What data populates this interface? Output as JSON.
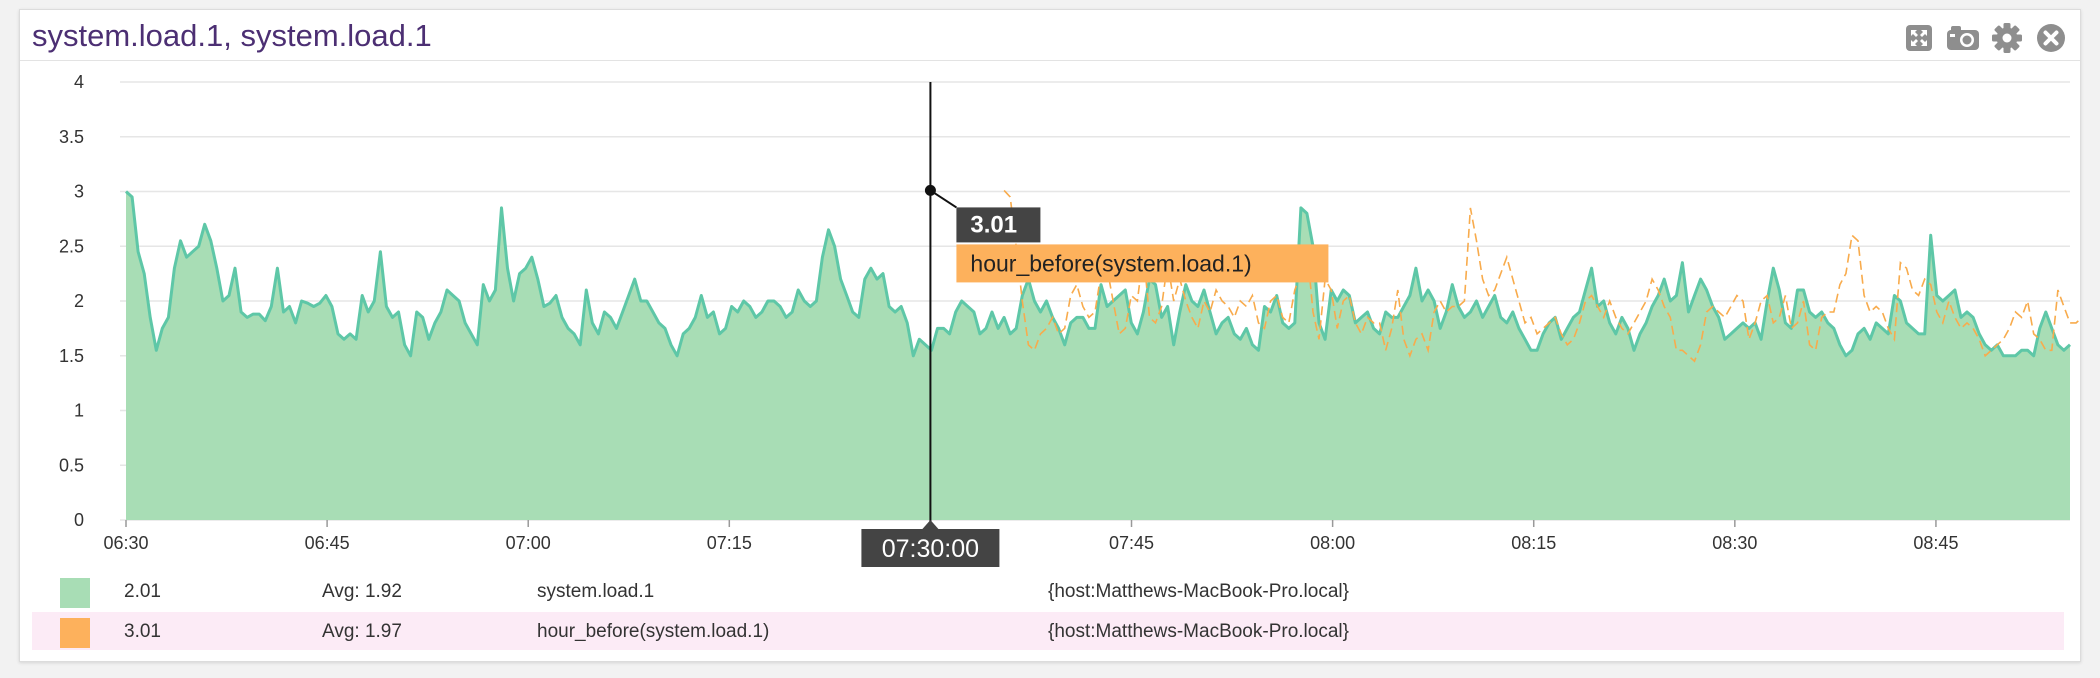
{
  "widget": {
    "title": "system.load.1, system.load.1",
    "toolbar": [
      {
        "name": "expand-icon"
      },
      {
        "name": "camera-icon"
      },
      {
        "name": "gear-icon"
      },
      {
        "name": "close-icon"
      }
    ]
  },
  "colors": {
    "series1_fill": "#a8ddb5",
    "series1_line": "#5ec7a7",
    "series2_line": "#f8ab4c",
    "tooltip_value_bg": "#444444",
    "tooltip_label_bg": "#fdb15c",
    "cursor_badge_bg": "#444444",
    "legend_highlight": "#fcebf6"
  },
  "chart_data": {
    "type": "area",
    "x_axis": {
      "ticks": [
        "06:30",
        "06:45",
        "07:00",
        "07:15",
        "07:45",
        "08:00",
        "08:15",
        "08:30",
        "08:45"
      ],
      "start": "06:30",
      "end": "08:55"
    },
    "y_axis": {
      "ticks": [
        "0",
        "0.5",
        "1",
        "1.5",
        "2",
        "2.5",
        "3",
        "3.5",
        "4"
      ],
      "ylim": [
        0,
        4
      ]
    },
    "grid": true,
    "series": [
      {
        "name": "system.load.1",
        "style": "area",
        "values": [
          3.0,
          2.95,
          2.45,
          2.25,
          1.85,
          1.55,
          1.75,
          1.85,
          2.3,
          2.55,
          2.4,
          2.45,
          2.5,
          2.7,
          2.55,
          2.3,
          2.0,
          2.05,
          2.3,
          1.9,
          1.85,
          1.88,
          1.88,
          1.82,
          1.95,
          2.3,
          1.9,
          1.95,
          1.8,
          2.0,
          1.98,
          1.95,
          1.98,
          2.05,
          1.95,
          1.7,
          1.65,
          1.7,
          1.65,
          2.05,
          1.9,
          2.0,
          2.45,
          1.95,
          1.85,
          1.9,
          1.6,
          1.5,
          1.9,
          1.85,
          1.65,
          1.8,
          1.9,
          2.1,
          2.05,
          2.0,
          1.8,
          1.7,
          1.6,
          2.15,
          2.0,
          2.1,
          2.85,
          2.3,
          2.0,
          2.25,
          2.3,
          2.4,
          2.2,
          1.95,
          1.98,
          2.05,
          1.85,
          1.75,
          1.7,
          1.6,
          2.1,
          1.8,
          1.7,
          1.9,
          1.85,
          1.75,
          1.9,
          2.05,
          2.2,
          2.0,
          2.0,
          1.9,
          1.8,
          1.75,
          1.6,
          1.5,
          1.7,
          1.75,
          1.85,
          2.05,
          1.85,
          1.9,
          1.7,
          1.75,
          1.95,
          1.9,
          2.0,
          1.95,
          1.85,
          1.9,
          2.0,
          2.0,
          1.95,
          1.85,
          1.9,
          2.1,
          2.0,
          1.95,
          2.0,
          2.4,
          2.65,
          2.5,
          2.2,
          2.05,
          1.9,
          1.85,
          2.2,
          2.3,
          2.2,
          2.25,
          1.95,
          1.9,
          1.95,
          1.8,
          1.5,
          1.65,
          1.6,
          1.55,
          1.75,
          1.75,
          1.7,
          1.9,
          2.0,
          1.95,
          1.9,
          1.7,
          1.75,
          1.9,
          1.75,
          1.85,
          1.7,
          1.75,
          2.05,
          2.2,
          2.0,
          1.9,
          2.0,
          1.85,
          1.75,
          1.6,
          1.8,
          1.85,
          1.85,
          1.75,
          1.75,
          2.15,
          1.95,
          2.0,
          2.05,
          2.1,
          1.8,
          1.7,
          1.9,
          2.2,
          2.15,
          1.85,
          1.95,
          1.6,
          1.9,
          2.15,
          2.0,
          1.95,
          2.1,
          1.9,
          1.7,
          1.8,
          1.85,
          1.7,
          1.65,
          1.75,
          1.6,
          1.55,
          1.95,
          1.9,
          2.05,
          1.8,
          1.75,
          1.8,
          2.85,
          2.8,
          2.5,
          1.8,
          1.65,
          2.1,
          2.0,
          2.1,
          2.05,
          1.8,
          1.85,
          1.9,
          1.75,
          1.7,
          1.9,
          1.85,
          1.85,
          1.95,
          2.05,
          2.3,
          2.0,
          2.1,
          2.0,
          1.75,
          1.9,
          2.15,
          1.95,
          1.85,
          1.9,
          2.0,
          1.85,
          1.95,
          2.05,
          1.85,
          1.8,
          1.9,
          1.75,
          1.65,
          1.55,
          1.55,
          1.7,
          1.8,
          1.85,
          1.65,
          1.75,
          1.85,
          1.9,
          2.1,
          2.3,
          1.95,
          2.0,
          1.8,
          1.7,
          1.85,
          1.75,
          1.55,
          1.7,
          1.8,
          1.95,
          2.05,
          2.2,
          2.0,
          2.05,
          2.35,
          1.9,
          2.05,
          2.2,
          2.1,
          1.95,
          1.85,
          1.65,
          1.7,
          1.75,
          1.8,
          1.75,
          1.8,
          1.65,
          2.0,
          2.3,
          2.1,
          1.8,
          1.75,
          2.1,
          2.1,
          1.9,
          1.85,
          1.9,
          1.8,
          1.75,
          1.6,
          1.5,
          1.55,
          1.7,
          1.75,
          1.65,
          1.8,
          1.75,
          1.7,
          2.05,
          2.0,
          1.8,
          1.75,
          1.7,
          1.7,
          2.6,
          2.05,
          2.0,
          2.05,
          2.1,
          1.85,
          1.9,
          1.85,
          1.7,
          1.6,
          1.55,
          1.6,
          1.5,
          1.5,
          1.5,
          1.55,
          1.55,
          1.5,
          1.75,
          1.9,
          1.75,
          1.6,
          1.55,
          1.6
        ]
      },
      {
        "name": "hour_before(system.load.1)",
        "style": "dashed-line",
        "x_start_index": 145,
        "values": [
          3.01,
          2.95,
          2.5,
          2.0,
          1.6,
          1.55,
          1.7,
          1.75,
          1.85,
          1.7,
          1.75,
          2.05,
          2.15,
          1.95,
          1.85,
          1.9,
          2.25,
          2.3,
          2.0,
          1.7,
          1.75,
          2.05,
          2.0,
          2.45,
          1.85,
          1.8,
          1.95,
          2.35,
          2.0,
          2.2,
          2.0,
          1.85,
          1.75,
          2.0,
          1.9,
          2.1,
          2.0,
          1.95,
          1.85,
          2.0,
          1.95,
          2.05,
          1.8,
          1.75,
          2.0,
          2.05,
          1.85,
          1.8,
          2.1,
          2.25,
          2.5,
          1.9,
          1.65,
          2.2,
          2.1,
          1.75,
          2.0,
          2.05,
          1.8,
          1.7,
          1.85,
          1.8,
          1.8,
          1.55,
          1.75,
          2.1,
          1.65,
          1.5,
          1.65,
          1.7,
          1.55,
          1.9,
          2.0,
          1.9,
          1.95,
          1.95,
          2.0,
          2.85,
          2.55,
          2.2,
          2.05,
          2.1,
          2.25,
          2.4,
          2.2,
          2.0,
          1.8,
          1.85,
          1.7,
          1.75,
          1.8,
          1.85,
          1.7,
          1.6,
          1.65,
          1.8,
          2.0,
          2.05,
          1.95,
          1.85,
          2.0,
          1.85,
          1.75,
          1.7,
          1.8,
          1.9,
          2.0,
          2.2,
          2.1,
          1.95,
          1.85,
          1.55,
          1.55,
          1.5,
          1.45,
          1.6,
          1.9,
          1.95,
          1.9,
          1.85,
          1.95,
          2.05,
          2.0,
          1.65,
          1.8,
          2.0,
          2.05,
          1.8,
          1.85,
          2.05,
          1.75,
          1.8,
          2.0,
          1.6,
          1.55,
          1.85,
          1.9,
          1.9,
          2.15,
          2.25,
          2.6,
          2.55,
          2.05,
          1.9,
          1.95,
          1.9,
          1.75,
          1.65,
          2.35,
          2.3,
          2.1,
          2.05,
          2.2,
          2.15,
          1.9,
          1.8,
          2.0,
          1.85,
          1.75,
          1.8,
          1.75,
          1.65,
          1.5,
          1.55,
          1.6,
          1.65,
          1.75,
          1.9,
          1.85,
          2.0,
          1.7,
          1.65,
          1.55,
          1.55,
          2.1,
          1.95,
          1.8,
          1.8,
          1.85,
          1.7,
          1.6,
          1.5,
          1.55,
          1.55,
          1.7,
          1.75,
          1.6,
          1.6,
          1.55,
          1.65,
          1.7,
          1.9,
          1.95,
          2.05,
          1.95,
          1.85,
          1.75,
          1.65,
          1.6,
          1.7,
          1.95,
          2.05,
          2.25,
          2.2,
          2.4,
          2.3,
          2.1,
          2.2,
          2.05,
          1.95,
          2.05,
          2.1
        ]
      }
    ],
    "cursor": {
      "time": "07:30:00",
      "values": [
        {
          "series": "system.load.1",
          "value": "2.01"
        },
        {
          "series": "hour_before(system.load.1)",
          "value": "3.01"
        }
      ],
      "tooltip": {
        "value": "3.01",
        "series": "hour_before(system.load.1)"
      }
    }
  },
  "legend": [
    {
      "value": "2.01",
      "avg": "Avg: 1.92",
      "metric": "system.load.1",
      "scope": "{host:Matthews-MacBook-Pro.local}",
      "color": "#a8ddb5",
      "highlighted": false
    },
    {
      "value": "3.01",
      "avg": "Avg: 1.97",
      "metric": "hour_before(system.load.1)",
      "scope": "{host:Matthews-MacBook-Pro.local}",
      "color": "#fdb15c",
      "highlighted": true
    }
  ]
}
